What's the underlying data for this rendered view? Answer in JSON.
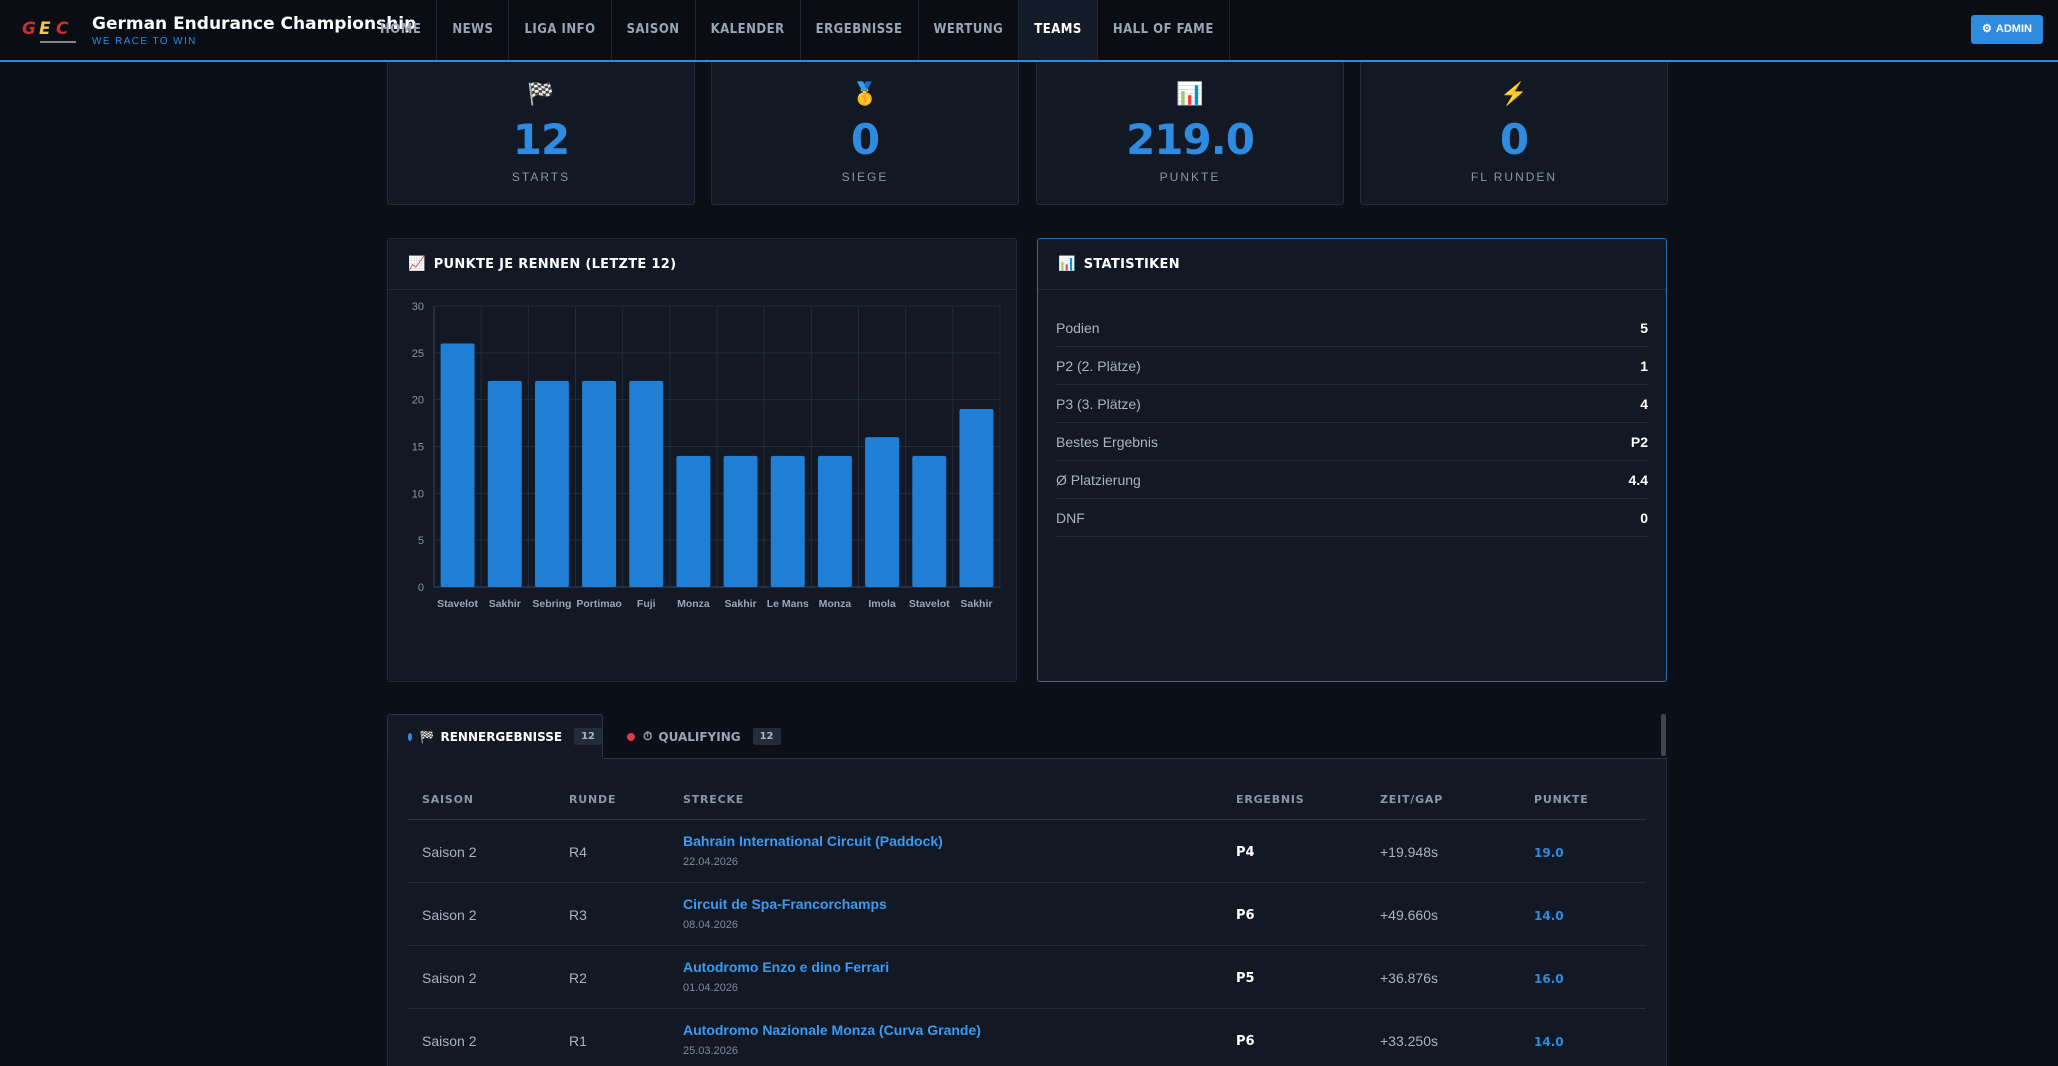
{
  "header": {
    "brand_title": "German Endurance Championship",
    "brand_subtitle": "WE RACE TO WIN",
    "logo_letters": [
      "G",
      "E",
      "C"
    ],
    "nav": [
      {
        "label": "HOME",
        "active": false
      },
      {
        "label": "NEWS",
        "active": false
      },
      {
        "label": "LIGA INFO",
        "active": false
      },
      {
        "label": "SAISON",
        "active": false
      },
      {
        "label": "KALENDER",
        "active": false
      },
      {
        "label": "ERGEBNISSE",
        "active": false
      },
      {
        "label": "WERTUNG",
        "active": false
      },
      {
        "label": "TEAMS",
        "active": true
      },
      {
        "label": "HALL OF FAME",
        "active": false
      }
    ],
    "admin_label": "ADMIN",
    "admin_icon": "gear-icon"
  },
  "stats_cards": [
    {
      "icon": "checkered-flag-icon",
      "glyph": "🏁",
      "value": "12",
      "label": "STARTS"
    },
    {
      "icon": "medal-icon",
      "glyph": "🥇",
      "value": "0",
      "label": "SIEGE"
    },
    {
      "icon": "bar-chart-icon",
      "glyph": "📊",
      "value": "219.0",
      "label": "PUNKTE"
    },
    {
      "icon": "lightning-icon",
      "glyph": "⚡",
      "value": "0",
      "label": "FL RUNDEN"
    }
  ],
  "points_panel": {
    "title": "PUNKTE JE RENNEN (LETZTE 12)",
    "icon": "chart-line-icon",
    "glyph": "📈"
  },
  "chart_data": {
    "type": "bar",
    "categories": [
      "Stavelot",
      "Sakhir",
      "Sebring",
      "Portimao",
      "Fuji",
      "Monza",
      "Sakhir",
      "Le Mans",
      "Monza",
      "Imola",
      "Stavelot",
      "Sakhir"
    ],
    "values": [
      26,
      22,
      22,
      22,
      22,
      14,
      14,
      14,
      14,
      16,
      14,
      19
    ],
    "title": "PUNKTE JE RENNEN (LETZTE 12)",
    "xlabel": "",
    "ylabel": "",
    "ylim": [
      0,
      30
    ],
    "yticks": [
      0,
      5,
      10,
      15,
      20,
      25,
      30
    ],
    "grid": true,
    "bar_color": "#1f7fd4"
  },
  "stats_panel": {
    "title": "STATISTIKEN",
    "icon": "bar-chart-icon",
    "glyph": "📊",
    "rows": [
      {
        "label": "Podien",
        "value": "5"
      },
      {
        "label": "P2 (2. Plätze)",
        "value": "1"
      },
      {
        "label": "P3 (3. Plätze)",
        "value": "4"
      },
      {
        "label": "Bestes Ergebnis",
        "value": "P2"
      },
      {
        "label": "Ø Platzierung",
        "value": "4.4"
      },
      {
        "label": "DNF",
        "value": "0"
      }
    ]
  },
  "tabs": [
    {
      "label": "RENNERGEBNISSE",
      "count": "12",
      "dot_color": "#2f8be0",
      "icon": "checkered-flag-icon",
      "glyph": "🏁",
      "active": true
    },
    {
      "label": "QUALIFYING",
      "count": "12",
      "dot_color": "#e03a4a",
      "icon": "stopwatch-icon",
      "glyph": "⏱",
      "active": false
    }
  ],
  "results_table": {
    "columns": [
      "SAISON",
      "RUNDE",
      "STRECKE",
      "ERGEBNIS",
      "ZEIT/GAP",
      "PUNKTE"
    ],
    "rows": [
      {
        "saison": "Saison 2",
        "runde": "R4",
        "strecke": "Bahrain International Circuit (Paddock)",
        "datum": "22.04.2026",
        "ergebnis": "P4",
        "gap": "+19.948s",
        "punkte": "19.0"
      },
      {
        "saison": "Saison 2",
        "runde": "R3",
        "strecke": "Circuit de Spa-Francorchamps",
        "datum": "08.04.2026",
        "ergebnis": "P6",
        "gap": "+49.660s",
        "punkte": "14.0"
      },
      {
        "saison": "Saison 2",
        "runde": "R2",
        "strecke": "Autodromo Enzo e dino Ferrari",
        "datum": "01.04.2026",
        "ergebnis": "P5",
        "gap": "+36.876s",
        "punkte": "16.0"
      },
      {
        "saison": "Saison 2",
        "runde": "R1",
        "strecke": "Autodromo Nazionale Monza (Curva Grande)",
        "datum": "25.03.2026",
        "ergebnis": "P6",
        "gap": "+33.250s",
        "punkte": "14.0"
      }
    ]
  }
}
